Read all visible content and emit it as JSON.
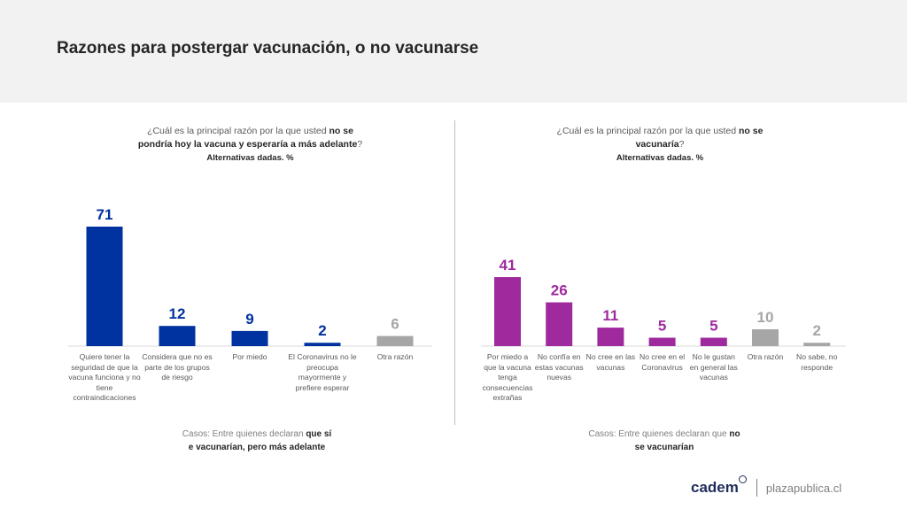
{
  "title": "Razones para postergar vacunación, o no vacunarse",
  "left": {
    "question_pre": "¿Cuál es la principal razón por la que usted ",
    "question_hl1": "no se",
    "question_hl2": "pondría hoy la vacuna y esperaría a más adelante",
    "question_post": "?",
    "question_sub": "Alternativas dadas. %",
    "cases_pre": "Casos: Entre quienes declaran ",
    "cases_hl1": "que sí",
    "cases_hl2": "e vacunarían, pero más adelante"
  },
  "right": {
    "question_pre": "¿Cuál es la principal razón por la que usted ",
    "question_hl1": "no se",
    "question_hl2": "vacunaría",
    "question_post": "?",
    "question_sub": "Alternativas dadas. %",
    "cases_pre": "Casos: Entre quienes declaran que ",
    "cases_hl1": "no",
    "cases_hl2": "se vacunarían"
  },
  "chart_data": [
    {
      "type": "bar",
      "categories": [
        "Quiere tener la seguridad de que la vacuna funciona y no tiene contraindicaciones",
        "Considera que no es parte de los grupos de riesgo",
        "Por miedo",
        "El Coronavirus no le preocupa mayormente y prefiere esperar",
        "Otra razón"
      ],
      "values": [
        71,
        12,
        9,
        2,
        6
      ],
      "colors": [
        "#0033a0",
        "#0033a0",
        "#0033a0",
        "#0033a0",
        "#a6a6a6"
      ],
      "ylim": [
        0,
        71
      ]
    },
    {
      "type": "bar",
      "categories": [
        "Por miedo a que la vacuna tenga consecuencias extrañas",
        "No confía en estas vacunas nuevas",
        "No cree en las vacunas",
        "No cree en el Coronavirus",
        "No le gustan en general las vacunas",
        "Otra razón",
        "No sabe, no responde"
      ],
      "values": [
        41,
        26,
        11,
        5,
        5,
        10,
        2
      ],
      "colors": [
        "#9e2a9e",
        "#9e2a9e",
        "#9e2a9e",
        "#9e2a9e",
        "#9e2a9e",
        "#a6a6a6",
        "#a6a6a6"
      ],
      "ylim": [
        0,
        71
      ]
    }
  ],
  "footer": {
    "logo": "cadem",
    "site": "plazapublica.cl"
  }
}
